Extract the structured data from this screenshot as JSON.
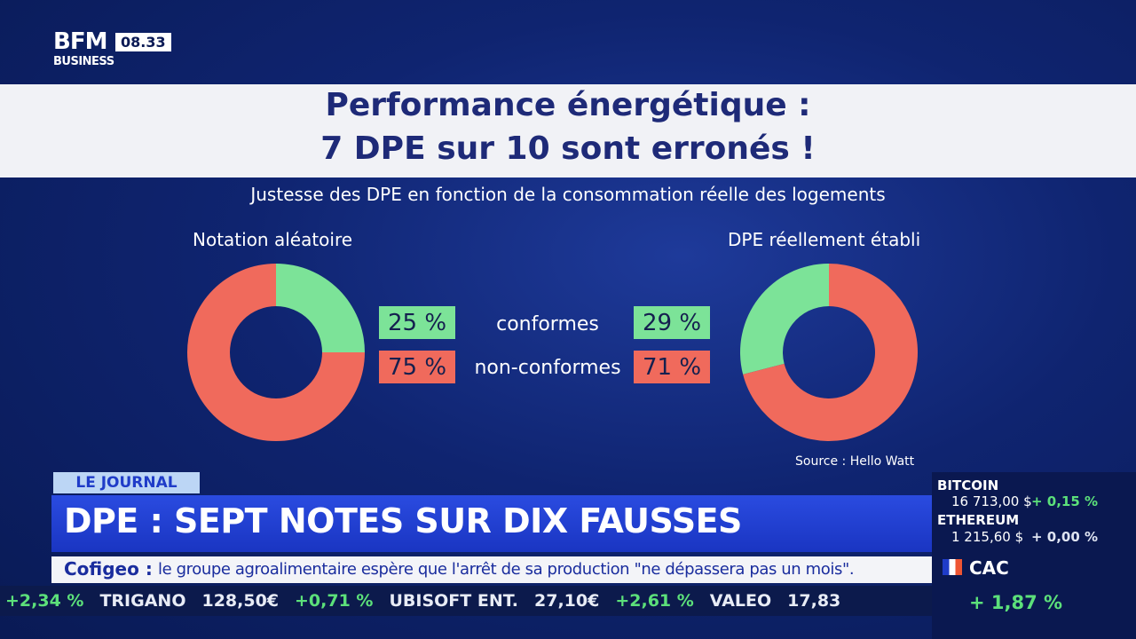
{
  "header": {
    "logo": "BFM",
    "logo_sub": "BUSINESS",
    "time": "08.33"
  },
  "headline": {
    "line1": "Performance énergétique :",
    "line2": "7 DPE sur 10 sont erronés !"
  },
  "subtitle": "Justesse des DPE en fonction de la consommation réelle des logements",
  "source": "Source : Hello Watt",
  "chart_data": [
    {
      "type": "pie",
      "title": "Notation aléatoire",
      "categories": [
        "conformes",
        "non-conformes"
      ],
      "values": [
        25,
        75
      ],
      "value_labels": [
        "25 %",
        "75 %"
      ],
      "colors": [
        "#7ce398",
        "#f06a5c"
      ],
      "donut": true,
      "direction": "clockwise"
    },
    {
      "type": "pie",
      "title": "DPE réellement établi",
      "values": [
        29,
        71
      ],
      "value_labels": [
        "29 %",
        "71 %"
      ],
      "colors": [
        "#7ce398",
        "#f06a5c"
      ],
      "donut": true,
      "direction": "counterclockwise"
    }
  ],
  "banner": {
    "tag": "LE JOURNAL",
    "title": "DPE : SEPT NOTES SUR DIX FAUSSES",
    "ticker_source": "Cofigeo :",
    "ticker_text": "le groupe agroalimentaire espère que l'arrêt de sa production \"ne dépassera pas un mois\"."
  },
  "markets": [
    {
      "name": "BITCOIN",
      "price": "16 713,00 $",
      "change": "+ 0,15 %"
    },
    {
      "name": "ETHEREUM",
      "price": "1 215,60 $",
      "change": "+ 0,00 %"
    }
  ],
  "index": {
    "name": "CAC",
    "change": "+ 1,87 %"
  },
  "stocks": [
    {
      "change": "+2,34 %"
    },
    {
      "name": "TRIGANO",
      "price": "128,50€",
      "change": "+0,71 %"
    },
    {
      "name": "UBISOFT ENT.",
      "price": "27,10€",
      "change": "+2,61 %"
    },
    {
      "name": "VALEO",
      "price": "17,83"
    }
  ]
}
